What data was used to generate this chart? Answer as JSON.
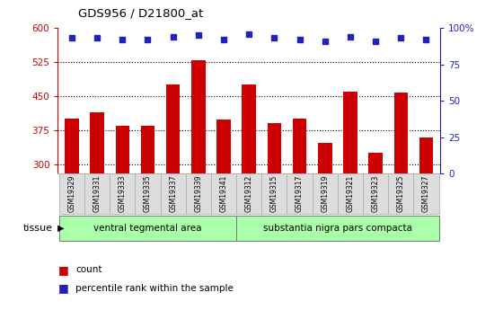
{
  "title": "GDS956 / D21800_at",
  "samples": [
    "GSM19329",
    "GSM19331",
    "GSM19333",
    "GSM19335",
    "GSM19337",
    "GSM19339",
    "GSM19341",
    "GSM19312",
    "GSM19315",
    "GSM19317",
    "GSM19319",
    "GSM19321",
    "GSM19323",
    "GSM19325",
    "GSM19327"
  ],
  "counts": [
    400,
    415,
    385,
    385,
    475,
    530,
    398,
    475,
    390,
    400,
    348,
    460,
    325,
    458,
    360
  ],
  "percentiles": [
    93,
    93,
    92,
    92,
    94,
    95,
    92,
    96,
    93,
    92,
    91,
    94,
    91,
    93,
    92
  ],
  "bar_color": "#cc0000",
  "dot_color": "#2222bb",
  "group1_label": "ventral tegmental area",
  "group2_label": "substantia nigra pars compacta",
  "group1_color": "#aaffaa",
  "group2_color": "#aaffaa",
  "group1_count": 7,
  "group2_count": 8,
  "ylim_left": [
    280,
    600
  ],
  "yticks_left": [
    300,
    375,
    450,
    525,
    600
  ],
  "ylim_right": [
    0,
    100
  ],
  "yticks_right": [
    0,
    25,
    50,
    75,
    100
  ],
  "tick_color_left": "#cc0000",
  "tick_color_right": "#2222bb",
  "bar_bottom": 280
}
